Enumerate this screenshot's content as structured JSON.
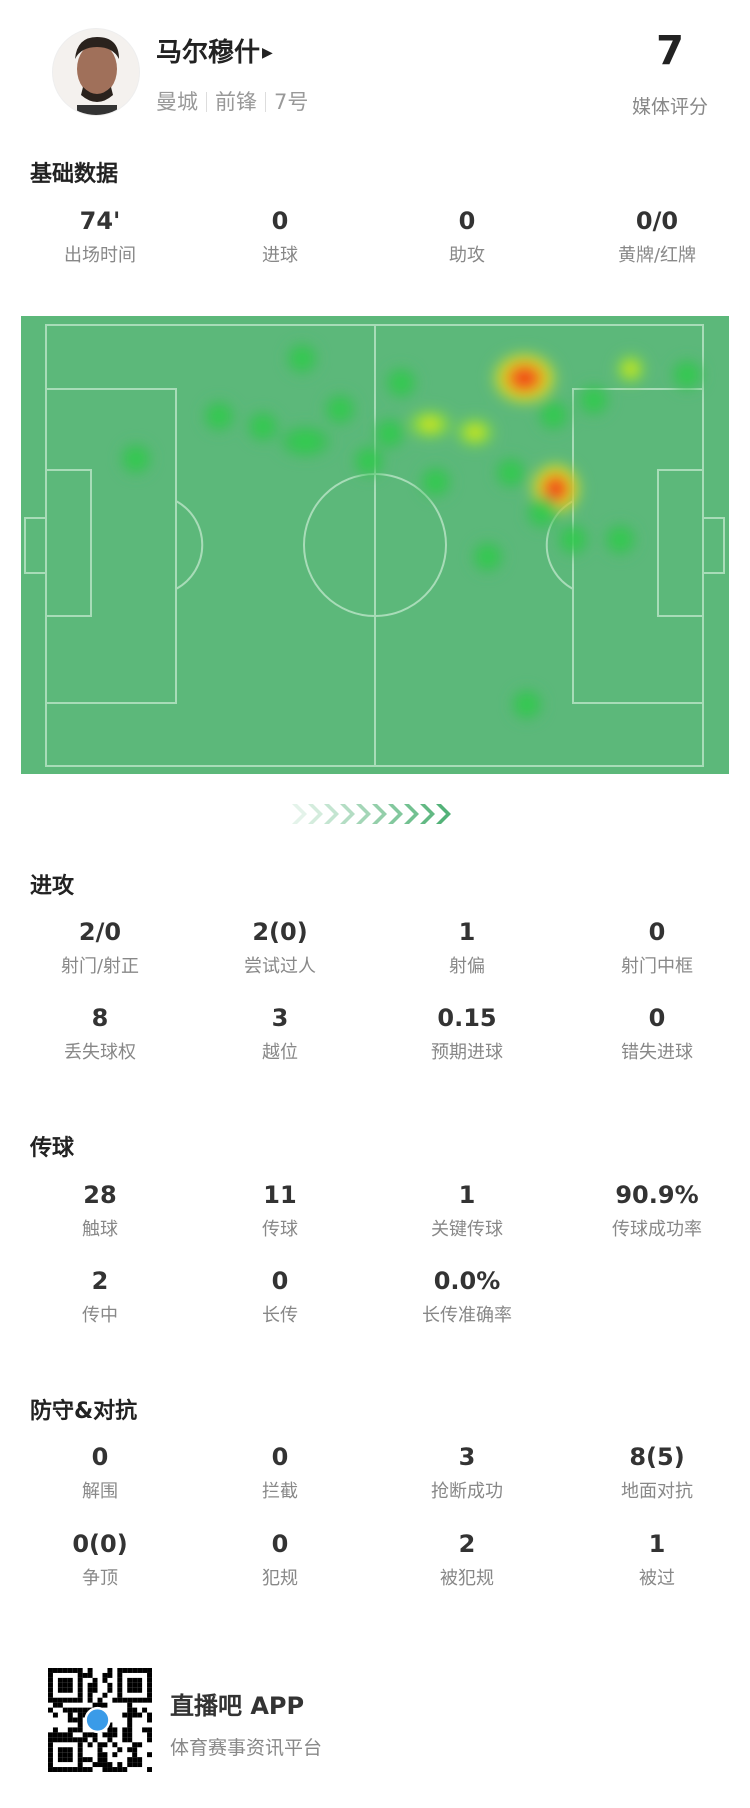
{
  "player": {
    "name": "马尔穆什",
    "team": "曼城",
    "position": "前锋",
    "number": "7号",
    "rating": "7",
    "rating_label": "媒体评分"
  },
  "basic": {
    "title": "基础数据",
    "stats": [
      {
        "v": "74'",
        "l": "出场时间"
      },
      {
        "v": "0",
        "l": "进球"
      },
      {
        "v": "0",
        "l": "助攻"
      },
      {
        "v": "0/0",
        "l": "黄牌/红牌"
      }
    ]
  },
  "attack": {
    "title": "进攻",
    "stats": [
      {
        "v": "2/0",
        "l": "射门/射正"
      },
      {
        "v": "2(0)",
        "l": "尝试过人"
      },
      {
        "v": "1",
        "l": "射偏"
      },
      {
        "v": "0",
        "l": "射门中框"
      },
      {
        "v": "8",
        "l": "丢失球权"
      },
      {
        "v": "3",
        "l": "越位"
      },
      {
        "v": "0.15",
        "l": "预期进球"
      },
      {
        "v": "0",
        "l": "错失进球"
      }
    ]
  },
  "passing": {
    "title": "传球",
    "stats": [
      {
        "v": "28",
        "l": "触球"
      },
      {
        "v": "11",
        "l": "传球"
      },
      {
        "v": "1",
        "l": "关键传球"
      },
      {
        "v": "90.9%",
        "l": "传球成功率"
      },
      {
        "v": "2",
        "l": "传中"
      },
      {
        "v": "0",
        "l": "长传"
      },
      {
        "v": "0.0%",
        "l": "长传准确率"
      }
    ]
  },
  "defense": {
    "title": "防守&对抗",
    "stats": [
      {
        "v": "0",
        "l": "解围"
      },
      {
        "v": "0",
        "l": "拦截"
      },
      {
        "v": "3",
        "l": "抢断成功"
      },
      {
        "v": "8(5)",
        "l": "地面对抗"
      },
      {
        "v": "0(0)",
        "l": "争顶"
      },
      {
        "v": "0",
        "l": "犯规"
      },
      {
        "v": "2",
        "l": "被犯规"
      },
      {
        "v": "1",
        "l": "被过"
      }
    ]
  },
  "footer": {
    "app": "直播吧 APP",
    "slogan": "体育赛事资讯平台"
  },
  "colors": {
    "pitch": "#5cb87a",
    "arrow": "#4caf72"
  }
}
